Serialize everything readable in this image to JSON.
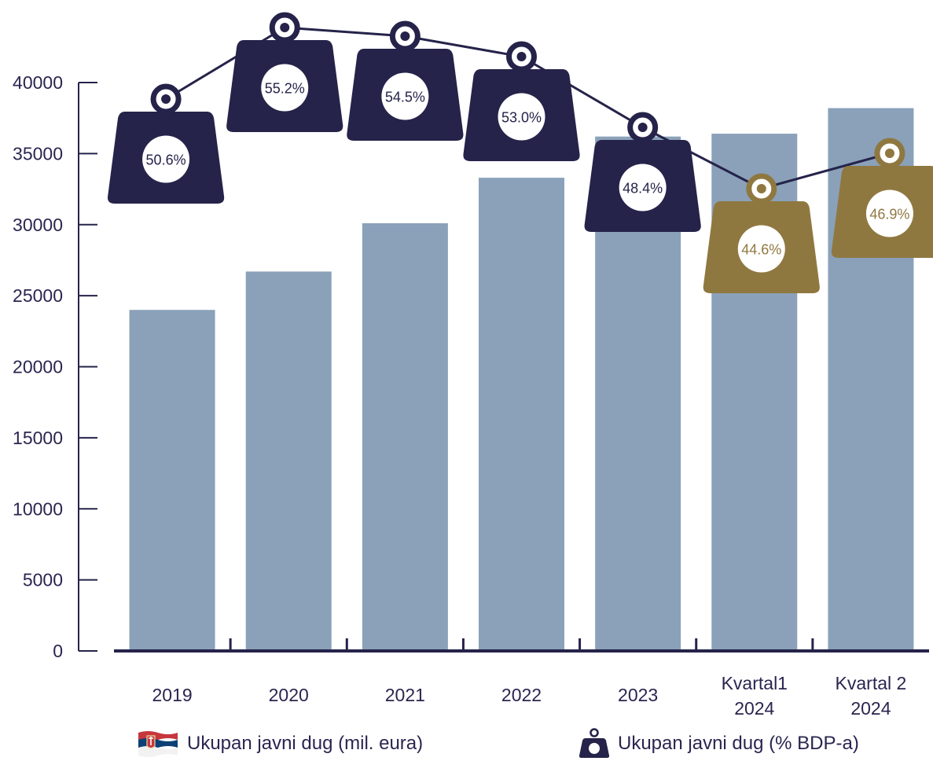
{
  "colors": {
    "bar": "#8aa1b9",
    "axis": "#25234a",
    "weight_dark": "#25234a",
    "weight_gold": "#8f7840",
    "text": "#2a2550",
    "flag_red": "#c6363c",
    "flag_blue": "#0c4076"
  },
  "chart_data": {
    "type": "bar",
    "categories": [
      "2019",
      "2020",
      "2021",
      "2022",
      "2023",
      "Kvartal1\n2024",
      "Kvartal 2\n2024"
    ],
    "ylim": [
      0,
      40000
    ],
    "yticks": [
      "0",
      "5000",
      "10000",
      "15000",
      "20000",
      "25000",
      "30000",
      "35000",
      "40000"
    ],
    "series": [
      {
        "name": "Ukupan javni dug (mil. eura)",
        "type": "bar",
        "values": [
          24000,
          26700,
          30100,
          33300,
          36200,
          36400,
          38200
        ]
      },
      {
        "name": "Ukupan javni dug (% BDP-a)",
        "type": "line",
        "values": [
          50.6,
          55.2,
          54.5,
          53.0,
          48.4,
          44.6,
          46.9
        ],
        "labels": [
          "50.6%",
          "55.2%",
          "54.5%",
          "53.0%",
          "48.4%",
          "44.6%",
          "46.9%"
        ],
        "projected": [
          false,
          false,
          false,
          false,
          false,
          true,
          true
        ]
      }
    ],
    "legend": {
      "bars": "Ukupan javni dug (mil. eura)",
      "line": "Ukupan javni dug (% BDP-a)"
    }
  }
}
